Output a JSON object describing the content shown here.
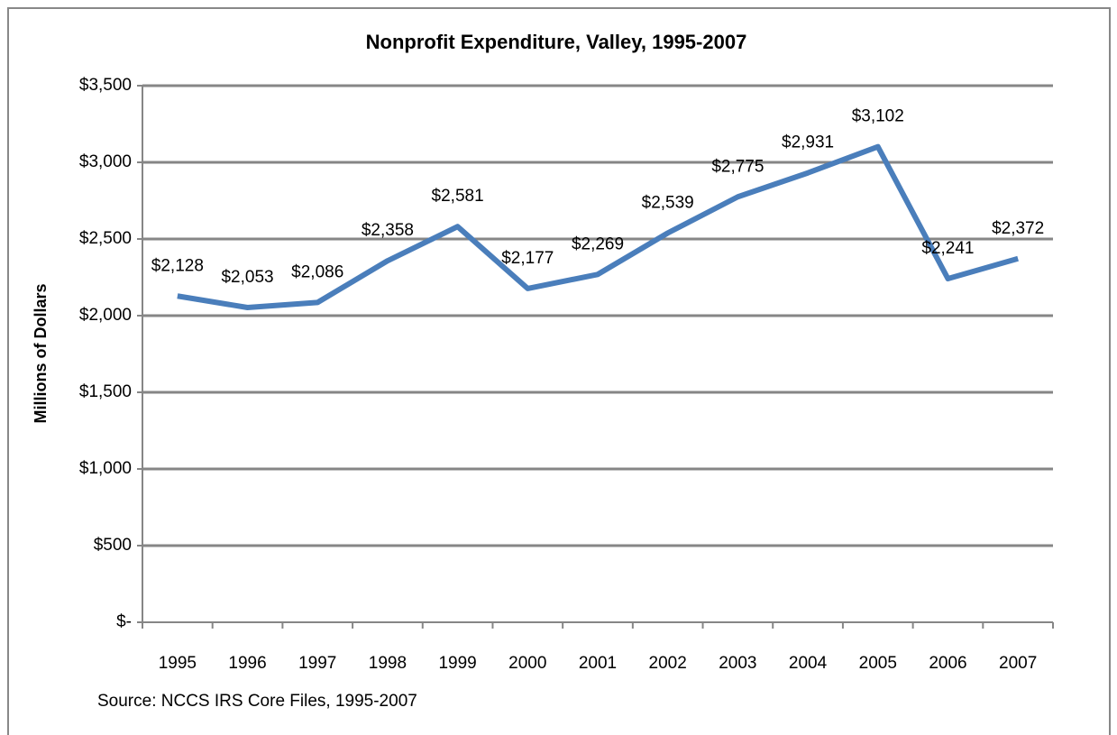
{
  "chart_data": {
    "type": "line",
    "title": "Nonprofit Expenditure, Valley, 1995-2007",
    "y_label": "Millions of Dollars",
    "annotation": "Source: NCCS IRS Core Files, 1995-2007",
    "categories": [
      "1995",
      "1996",
      "1997",
      "1998",
      "1999",
      "2000",
      "2001",
      "2002",
      "2003",
      "2004",
      "2005",
      "2006",
      "2007"
    ],
    "series": [
      {
        "name": "Expenditure",
        "color": "#4a7ebb",
        "values": [
          2128,
          2053,
          2086,
          2358,
          2581,
          2177,
          2269,
          2539,
          2775,
          2931,
          3102,
          2241,
          2372
        ],
        "value_labels": [
          "$2,128",
          "$2,053",
          "$2,086",
          "$2,358",
          "$2,581",
          "$2,177",
          "$2,269",
          "$2,539",
          "$2,775",
          "$2,931",
          "$3,102",
          "$2,241",
          "$2,372"
        ]
      }
    ],
    "ylim": [
      0,
      3500
    ],
    "yticks": [
      {
        "value": 0,
        "label": "$-"
      },
      {
        "value": 500,
        "label": "$500"
      },
      {
        "value": 1000,
        "label": "$1,000"
      },
      {
        "value": 1500,
        "label": "$1,500"
      },
      {
        "value": 2000,
        "label": "$2,000"
      },
      {
        "value": 2500,
        "label": "$2,500"
      },
      {
        "value": 3000,
        "label": "$3,000"
      },
      {
        "value": 3500,
        "label": "$3,500"
      }
    ],
    "grid": true
  }
}
